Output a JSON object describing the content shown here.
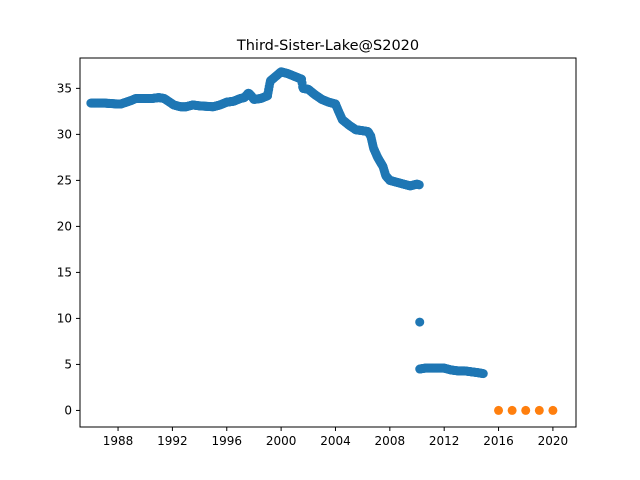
{
  "chart_data": {
    "type": "scatter",
    "title": "Third-Sister-Lake@S2020",
    "xlabel": "",
    "ylabel": "",
    "xlim": [
      1985.2,
      2021.7
    ],
    "ylim": [
      -1.8,
      38.3
    ],
    "xticks": [
      1988,
      1992,
      1996,
      2000,
      2004,
      2008,
      2012,
      2016,
      2020
    ],
    "yticks": [
      0,
      5,
      10,
      15,
      20,
      25,
      30,
      35
    ],
    "grid": false,
    "series": [
      {
        "color": "#1f77b4",
        "segments": [
          {
            "x0": 1986.0,
            "x1": 1988.2,
            "points": [
              [
                1986.0,
                33.4
              ],
              [
                1987.0,
                33.4
              ],
              [
                1988.0,
                33.3
              ],
              [
                1988.2,
                33.3
              ]
            ]
          },
          {
            "x0": 1988.2,
            "x1": 1990.0,
            "points": [
              [
                1988.2,
                33.3
              ],
              [
                1988.6,
                33.5
              ],
              [
                1989.0,
                33.7
              ],
              [
                1989.3,
                33.9
              ],
              [
                1990.0,
                33.9
              ]
            ]
          },
          {
            "x0": 1990.0,
            "x1": 1993.0,
            "points": [
              [
                1990.0,
                33.9
              ],
              [
                1990.5,
                33.9
              ],
              [
                1991.0,
                34.0
              ],
              [
                1991.4,
                33.9
              ],
              [
                1991.8,
                33.5
              ],
              [
                1992.1,
                33.2
              ],
              [
                1992.6,
                33.0
              ],
              [
                1993.0,
                33.0
              ]
            ]
          },
          {
            "x0": 1993.0,
            "x1": 1996.0,
            "points": [
              [
                1993.0,
                33.0
              ],
              [
                1993.5,
                33.2
              ],
              [
                1994.0,
                33.1
              ],
              [
                1995.0,
                33.0
              ],
              [
                1995.5,
                33.2
              ],
              [
                1996.0,
                33.5
              ]
            ]
          },
          {
            "x0": 1996.0,
            "x1": 1999.0,
            "points": [
              [
                1996.0,
                33.5
              ],
              [
                1996.5,
                33.6
              ],
              [
                1997.0,
                33.9
              ],
              [
                1997.3,
                34.0
              ],
              [
                1997.6,
                34.5
              ],
              [
                1997.8,
                34.2
              ],
              [
                1998.0,
                33.8
              ],
              [
                1998.5,
                33.9
              ],
              [
                1999.0,
                34.2
              ]
            ]
          },
          {
            "x0": 1999.0,
            "x1": 2001.5,
            "points": [
              [
                1999.0,
                34.2
              ],
              [
                1999.2,
                35.8
              ],
              [
                1999.6,
                36.3
              ],
              [
                2000.0,
                36.8
              ],
              [
                2000.5,
                36.6
              ],
              [
                2001.0,
                36.3
              ],
              [
                2001.5,
                36.0
              ]
            ]
          },
          {
            "x0": 2001.5,
            "x1": 2004.0,
            "points": [
              [
                2001.5,
                36.0
              ],
              [
                2001.6,
                35.0
              ],
              [
                2002.0,
                34.9
              ],
              [
                2002.5,
                34.3
              ],
              [
                2003.0,
                33.8
              ],
              [
                2003.5,
                33.5
              ],
              [
                2004.0,
                33.3
              ]
            ]
          },
          {
            "x0": 2004.0,
            "x1": 2006.6,
            "points": [
              [
                2004.0,
                33.3
              ],
              [
                2004.2,
                32.6
              ],
              [
                2004.5,
                31.6
              ],
              [
                2005.0,
                31.0
              ],
              [
                2005.5,
                30.5
              ],
              [
                2006.0,
                30.4
              ],
              [
                2006.4,
                30.3
              ],
              [
                2006.6,
                29.8
              ]
            ]
          },
          {
            "x0": 2006.6,
            "x1": 2008.0,
            "points": [
              [
                2006.6,
                29.8
              ],
              [
                2006.8,
                28.5
              ],
              [
                2007.1,
                27.5
              ],
              [
                2007.5,
                26.5
              ],
              [
                2007.7,
                25.5
              ],
              [
                2008.0,
                25.0
              ]
            ]
          },
          {
            "x0": 2008.0,
            "x1": 2010.2,
            "points": [
              [
                2008.0,
                25.0
              ],
              [
                2008.5,
                24.8
              ],
              [
                2009.0,
                24.6
              ],
              [
                2009.5,
                24.4
              ],
              [
                2010.0,
                24.6
              ],
              [
                2010.2,
                24.5
              ]
            ]
          },
          {
            "x0": 2010.2,
            "x1": 2012.0,
            "points": [
              [
                2010.2,
                4.5
              ],
              [
                2010.6,
                4.6
              ],
              [
                2011.0,
                4.6
              ],
              [
                2011.5,
                4.6
              ],
              [
                2012.0,
                4.6
              ]
            ]
          },
          {
            "x0": 2012.0,
            "x1": 2014.9,
            "points": [
              [
                2012.0,
                4.6
              ],
              [
                2012.5,
                4.4
              ],
              [
                2013.0,
                4.3
              ],
              [
                2013.5,
                4.3
              ],
              [
                2014.0,
                4.2
              ],
              [
                2014.5,
                4.1
              ],
              [
                2014.9,
                4.0
              ]
            ]
          }
        ],
        "extra_points": [
          [
            2010.2,
            9.6
          ]
        ]
      },
      {
        "color": "#ff7f0e",
        "points": [
          [
            2016,
            0
          ],
          [
            2017,
            0
          ],
          [
            2018,
            0
          ],
          [
            2019,
            0
          ],
          [
            2020,
            0
          ]
        ]
      }
    ]
  }
}
